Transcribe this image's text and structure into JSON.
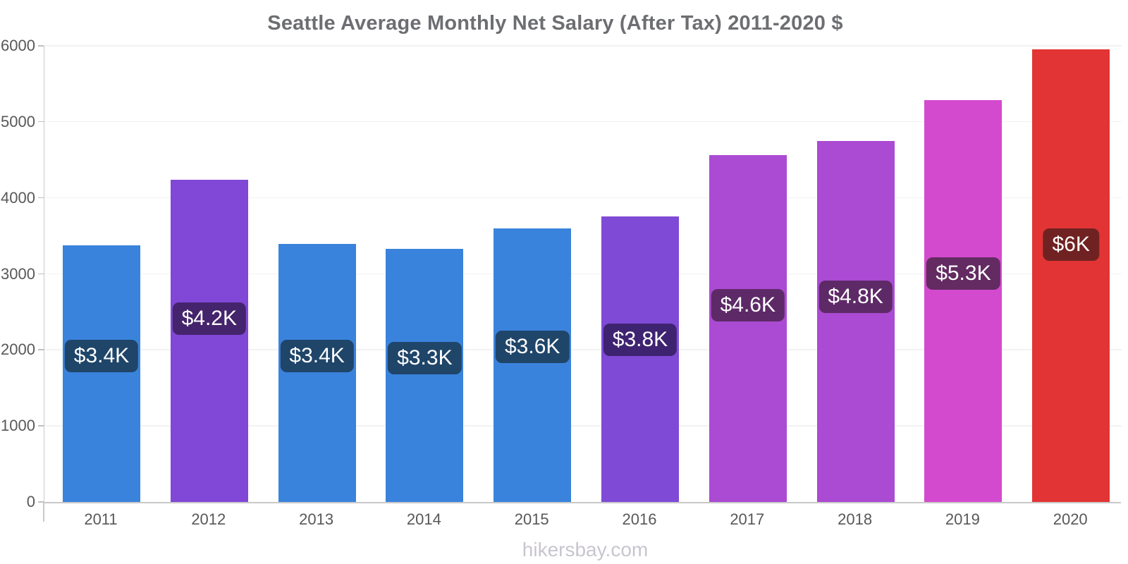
{
  "title": "Seattle Average Monthly Net Salary (After Tax) 2011-2020 $",
  "watermark": "hikersbay.com",
  "colors": {
    "title_text": "#6d6e71",
    "axis_text": "#58585a",
    "axis_line": "#c9c9c9",
    "tick": "#c0c0c0",
    "gridline": "#f2f2f2",
    "watermark_text": "#c9c5cf",
    "label_text": "#ffffff"
  },
  "chart_data": {
    "type": "bar",
    "title": "Seattle Average Monthly Net Salary (After Tax) 2011-2020 $",
    "xlabel": "",
    "ylabel": "",
    "categories": [
      "2011",
      "2012",
      "2013",
      "2014",
      "2015",
      "2016",
      "2017",
      "2018",
      "2019",
      "2020"
    ],
    "values": [
      3380,
      4240,
      3390,
      3330,
      3600,
      3760,
      4560,
      4750,
      5290,
      5950
    ],
    "value_labels": [
      "$3.4K",
      "$4.2K",
      "$3.4K",
      "$3.3K",
      "$3.6K",
      "$3.8K",
      "$4.6K",
      "$4.8K",
      "$5.3K",
      "$6K"
    ],
    "bar_colors": [
      "#3a83dc",
      "#8147d7",
      "#3a83dc",
      "#3a83dc",
      "#3a83dc",
      "#7f4ad6",
      "#ab4ad2",
      "#ab4ad2",
      "#d44ace",
      "#e23434"
    ],
    "label_bg_colors": [
      "#1f4569",
      "#44246c",
      "#1f4569",
      "#1f4569",
      "#1f4569",
      "#3e2370",
      "#5d2a67",
      "#5d2a67",
      "#632b62",
      "#702222"
    ],
    "ylim": [
      0,
      6000
    ],
    "yticks": [
      0,
      1000,
      2000,
      3000,
      4000,
      5000,
      6000
    ],
    "grid": true,
    "legend": false,
    "unit": "$"
  }
}
